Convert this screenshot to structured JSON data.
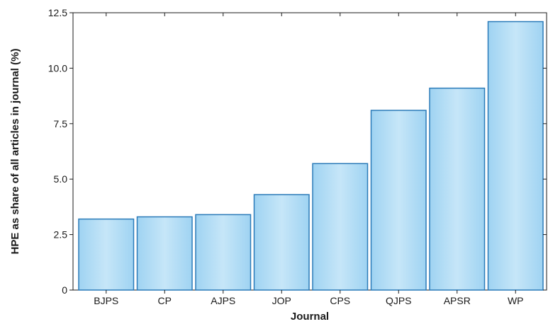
{
  "chart_data": {
    "type": "bar",
    "title": "",
    "xlabel": "Journal",
    "ylabel": "HPE as share of all articles in journal (%)",
    "categories": [
      "BJPS",
      "CP",
      "AJPS",
      "JOP",
      "CPS",
      "QJPS",
      "APSR",
      "WP"
    ],
    "values": [
      3.2,
      3.3,
      3.4,
      4.3,
      5.7,
      8.1,
      9.1,
      12.1
    ],
    "ylim": [
      0,
      12.5
    ],
    "yticks": [
      0,
      2.5,
      5.0,
      7.5,
      10.0,
      12.5
    ],
    "ytick_labels": [
      "0",
      "2.5",
      "5.0",
      "7.5",
      "10.0",
      "12.5"
    ],
    "grid": false,
    "legend": "none",
    "colors": {
      "bar_fill_top": "#c6e6f8",
      "bar_fill_bottom": "#9fd3f2",
      "bar_stroke": "#2a7ab8"
    }
  }
}
